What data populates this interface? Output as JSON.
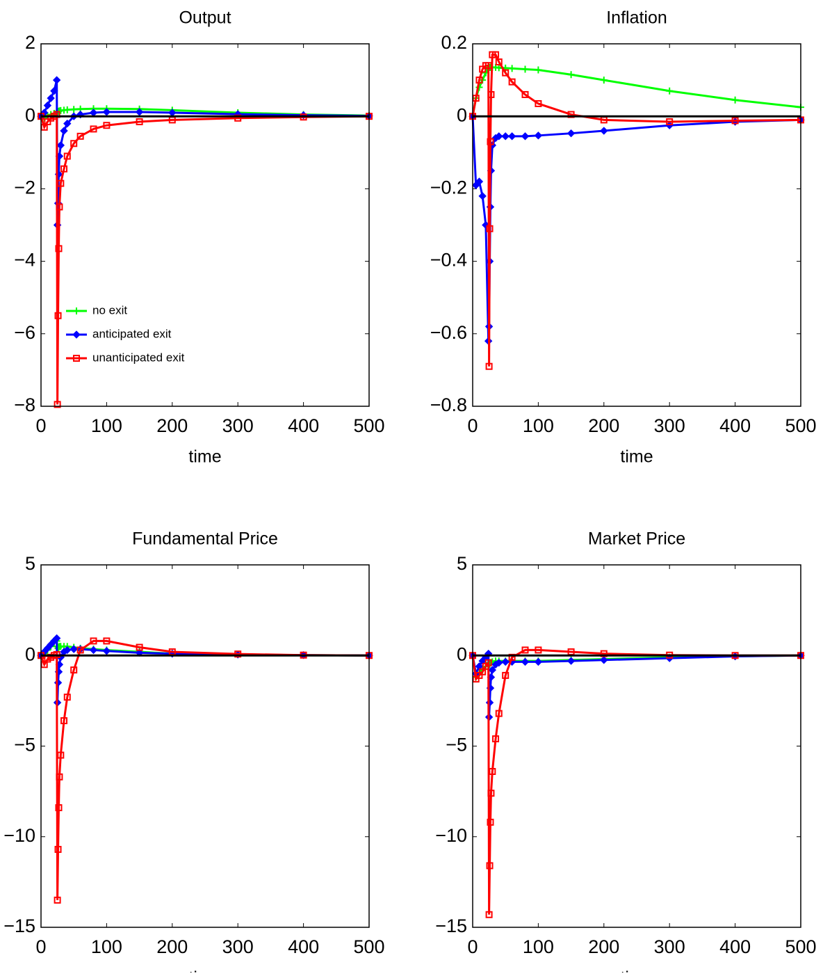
{
  "chart_data": [
    {
      "type": "line",
      "title": "Output",
      "xlabel": "time",
      "x": [
        0,
        5,
        10,
        15,
        20,
        24,
        25,
        26,
        27,
        28,
        30,
        35,
        40,
        50,
        60,
        80,
        100,
        150,
        200,
        300,
        400,
        500
      ],
      "xlim": [
        0,
        500
      ],
      "xticks": [
        0,
        100,
        200,
        300,
        400,
        500
      ],
      "ylim": [
        -8,
        2
      ],
      "yticks": [
        -8,
        -6,
        -4,
        -2,
        0,
        2
      ],
      "reference_line": {
        "y": 0,
        "color": "#000000"
      },
      "legend": "lower left",
      "series": [
        {
          "name": "no exit",
          "color": "#00ff00",
          "marker": "plus",
          "values": [
            0,
            -0.05,
            0.02,
            0.05,
            0.08,
            0.1,
            0.12,
            0.13,
            0.14,
            0.15,
            0.16,
            0.17,
            0.18,
            0.19,
            0.2,
            0.21,
            0.21,
            0.2,
            0.17,
            0.1,
            0.05,
            0.02
          ]
        },
        {
          "name": "anticipated exit",
          "color": "#0000ff",
          "marker": "diamond",
          "values": [
            0,
            0.1,
            0.3,
            0.5,
            0.7,
            1.0,
            -3.0,
            -2.4,
            -1.6,
            -1.1,
            -0.8,
            -0.4,
            -0.2,
            0.0,
            0.05,
            0.1,
            0.12,
            0.12,
            0.1,
            0.06,
            0.03,
            0.01
          ]
        },
        {
          "name": "unanticipated exit",
          "color": "#ff0000",
          "marker": "square",
          "values": [
            0,
            -0.3,
            -0.15,
            -0.05,
            0,
            0.05,
            -7.95,
            -5.5,
            -3.65,
            -2.5,
            -1.85,
            -1.45,
            -1.1,
            -0.75,
            -0.55,
            -0.35,
            -0.25,
            -0.15,
            -0.1,
            -0.05,
            -0.02,
            0
          ]
        }
      ]
    },
    {
      "type": "line",
      "title": "Inflation",
      "xlabel": "time",
      "x": [
        0,
        5,
        10,
        15,
        20,
        24,
        25,
        26,
        27,
        28,
        30,
        35,
        40,
        50,
        60,
        80,
        100,
        150,
        200,
        300,
        400,
        500
      ],
      "xlim": [
        0,
        500
      ],
      "xticks": [
        0,
        100,
        200,
        300,
        400,
        500
      ],
      "ylim": [
        -0.8,
        0.2
      ],
      "yticks": [
        -0.8,
        -0.6,
        -0.4,
        -0.2,
        0,
        0.2
      ],
      "reference_line": {
        "y": 0,
        "color": "#000000"
      },
      "series": [
        {
          "color": "#00ff00",
          "marker": "plus",
          "values": [
            0,
            0.05,
            0.08,
            0.1,
            0.12,
            0.13,
            0.135,
            0.135,
            0.135,
            0.135,
            0.135,
            0.135,
            0.134,
            0.133,
            0.132,
            0.13,
            0.128,
            0.115,
            0.1,
            0.07,
            0.045,
            0.025
          ]
        },
        {
          "color": "#0000ff",
          "marker": "diamond",
          "values": [
            0,
            -0.19,
            -0.18,
            -0.22,
            -0.3,
            -0.62,
            -0.58,
            -0.4,
            -0.25,
            -0.15,
            -0.08,
            -0.06,
            -0.055,
            -0.055,
            -0.055,
            -0.055,
            -0.053,
            -0.047,
            -0.04,
            -0.025,
            -0.015,
            -0.01
          ]
        },
        {
          "color": "#ff0000",
          "marker": "square",
          "values": [
            0,
            0.05,
            0.1,
            0.13,
            0.14,
            0.14,
            -0.69,
            -0.31,
            -0.07,
            0.06,
            0.17,
            0.17,
            0.15,
            0.12,
            0.095,
            0.06,
            0.035,
            0.005,
            -0.01,
            -0.015,
            -0.012,
            -0.01
          ]
        }
      ]
    },
    {
      "type": "line",
      "title": "Fundamental Price",
      "xlabel": "time",
      "x": [
        0,
        5,
        10,
        15,
        20,
        24,
        25,
        26,
        27,
        28,
        30,
        35,
        40,
        50,
        60,
        80,
        100,
        150,
        200,
        300,
        400,
        500
      ],
      "xlim": [
        0,
        500
      ],
      "xticks": [
        0,
        100,
        200,
        300,
        400,
        500
      ],
      "ylim": [
        -15,
        5
      ],
      "yticks": [
        -15,
        -10,
        -5,
        0,
        5
      ],
      "reference_line": {
        "y": 0,
        "color": "#000000"
      },
      "series": [
        {
          "color": "#00ff00",
          "marker": "plus",
          "values": [
            0,
            0.1,
            0.3,
            0.5,
            0.7,
            0.8,
            0.5,
            0.4,
            0.45,
            0.5,
            0.5,
            0.5,
            0.5,
            0.45,
            0.4,
            0.35,
            0.3,
            0.2,
            0.1,
            0.05,
            0.02,
            0
          ]
        },
        {
          "color": "#0000ff",
          "marker": "diamond",
          "values": [
            0,
            0.2,
            0.4,
            0.6,
            0.8,
            0.95,
            -2.6,
            -1.5,
            -0.9,
            -0.5,
            -0.1,
            0.2,
            0.3,
            0.35,
            0.35,
            0.3,
            0.25,
            0.15,
            0.1,
            0.05,
            0.02,
            0
          ]
        },
        {
          "color": "#ff0000",
          "marker": "square",
          "values": [
            0,
            -0.5,
            -0.2,
            -0.1,
            0,
            0.05,
            -13.5,
            -10.7,
            -8.4,
            -6.7,
            -5.5,
            -3.6,
            -2.3,
            -0.8,
            0.3,
            0.8,
            0.8,
            0.45,
            0.2,
            0.08,
            0.02,
            0
          ]
        }
      ]
    },
    {
      "type": "line",
      "title": "Market Price",
      "xlabel": "time",
      "x": [
        0,
        5,
        10,
        15,
        20,
        24,
        25,
        26,
        27,
        28,
        30,
        35,
        40,
        50,
        60,
        80,
        100,
        150,
        200,
        300,
        400,
        500
      ],
      "xlim": [
        0,
        500
      ],
      "xticks": [
        0,
        100,
        200,
        300,
        400,
        500
      ],
      "ylim": [
        -15,
        5
      ],
      "yticks": [
        -15,
        -10,
        -5,
        0,
        5
      ],
      "reference_line": {
        "y": 0,
        "color": "#000000"
      },
      "series": [
        {
          "color": "#00ff00",
          "marker": "plus",
          "values": [
            0,
            -1.2,
            -1.0,
            -0.8,
            -0.6,
            -0.4,
            -0.5,
            -0.5,
            -0.4,
            -0.4,
            -0.35,
            -0.3,
            -0.3,
            -0.3,
            -0.3,
            -0.3,
            -0.3,
            -0.25,
            -0.2,
            -0.1,
            -0.05,
            0
          ]
        },
        {
          "color": "#0000ff",
          "marker": "diamond",
          "values": [
            0,
            -1.0,
            -0.6,
            -0.3,
            -0.1,
            0.1,
            -3.4,
            -2.6,
            -1.8,
            -1.2,
            -0.8,
            -0.5,
            -0.4,
            -0.35,
            -0.35,
            -0.35,
            -0.35,
            -0.3,
            -0.25,
            -0.15,
            -0.05,
            0
          ]
        },
        {
          "color": "#ff0000",
          "marker": "square",
          "values": [
            0,
            -1.3,
            -1.1,
            -0.9,
            -0.6,
            -0.4,
            -14.3,
            -11.6,
            -9.2,
            -7.6,
            -6.4,
            -4.6,
            -3.2,
            -1.1,
            -0.1,
            0.3,
            0.3,
            0.2,
            0.1,
            0.02,
            0,
            0
          ]
        }
      ]
    }
  ]
}
